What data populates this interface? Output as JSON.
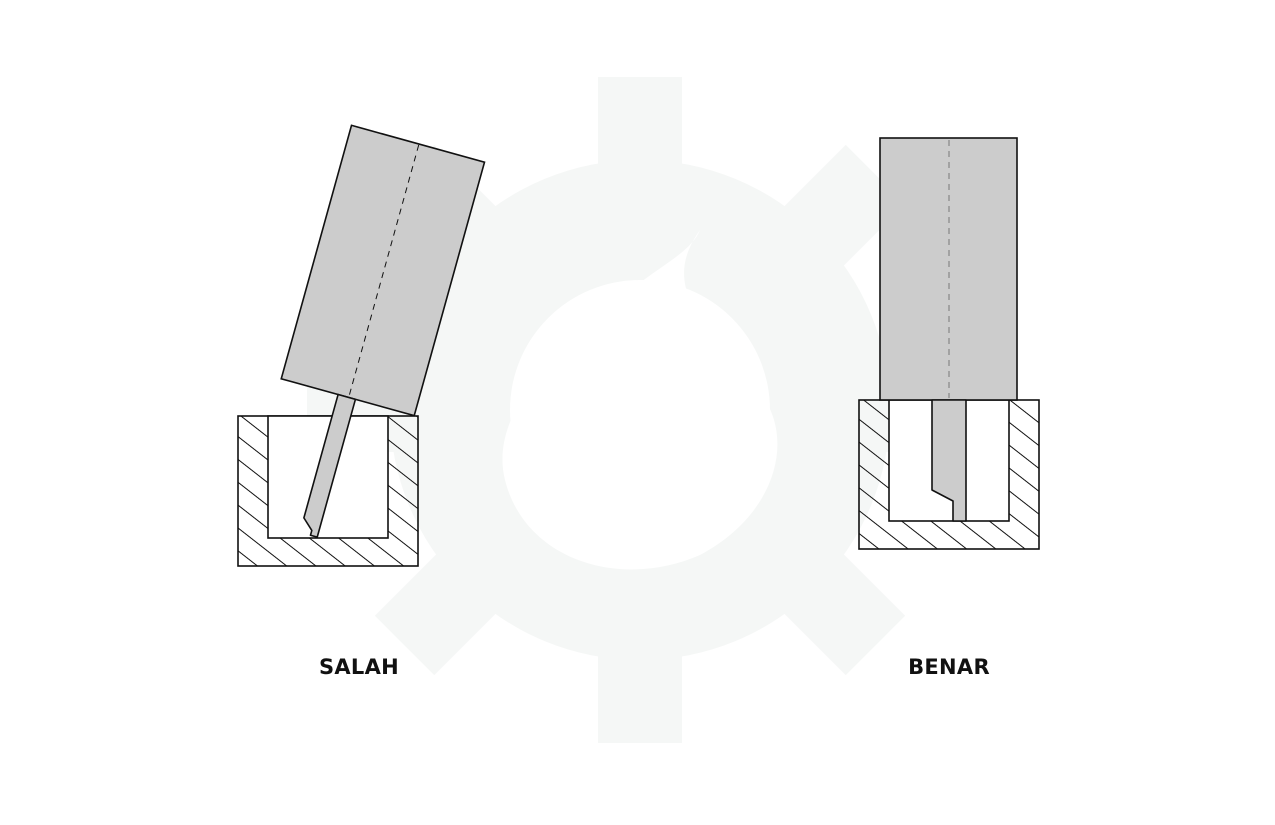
{
  "labels": {
    "wrong": "SALAH",
    "right": "BENAR"
  },
  "colors": {
    "background": "#ffffff",
    "watermark": "#f5f7f6",
    "tool_fill": "#cccccc",
    "stroke": "#111111"
  },
  "wrong_tilt_deg": 15.5
}
